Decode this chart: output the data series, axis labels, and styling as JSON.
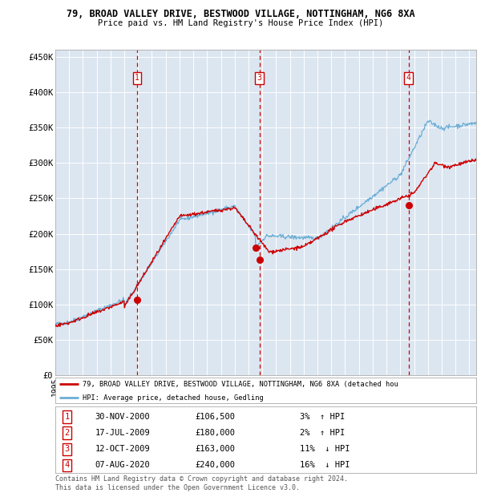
{
  "title1": "79, BROAD VALLEY DRIVE, BESTWOOD VILLAGE, NOTTINGHAM, NG6 8XA",
  "title2": "Price paid vs. HM Land Registry's House Price Index (HPI)",
  "background_color": "#dce6f1",
  "hpi_color": "#6baed6",
  "price_color": "#cc0000",
  "dashed_color": "#cc0000",
  "ylim": [
    0,
    460000
  ],
  "yticks": [
    0,
    50000,
    100000,
    150000,
    200000,
    250000,
    300000,
    350000,
    400000,
    450000
  ],
  "ytick_labels": [
    "£0",
    "£50K",
    "£100K",
    "£150K",
    "£200K",
    "£250K",
    "£300K",
    "£350K",
    "£400K",
    "£450K"
  ],
  "xlim_start": 1995,
  "xlim_end": 2025.5,
  "transactions": [
    {
      "num": 1,
      "date": "30-NOV-2000",
      "year": 2000.92,
      "price": 106500,
      "pct": "3%",
      "dir": "↑"
    },
    {
      "num": 2,
      "date": "17-JUL-2009",
      "year": 2009.54,
      "price": 180000,
      "pct": "2%",
      "dir": "↑"
    },
    {
      "num": 3,
      "date": "12-OCT-2009",
      "year": 2009.79,
      "price": 163000,
      "pct": "11%",
      "dir": "↓"
    },
    {
      "num": 4,
      "date": "07-AUG-2020",
      "year": 2020.6,
      "price": 240000,
      "pct": "16%",
      "dir": "↓"
    }
  ],
  "shown_in_chart": [
    1,
    3,
    4
  ],
  "legend_line1": "79, BROAD VALLEY DRIVE, BESTWOOD VILLAGE, NOTTINGHAM, NG6 8XA (detached hou",
  "legend_line2": "HPI: Average price, detached house, Gedling",
  "footnote1": "Contains HM Land Registry data © Crown copyright and database right 2024.",
  "footnote2": "This data is licensed under the Open Government Licence v3.0."
}
